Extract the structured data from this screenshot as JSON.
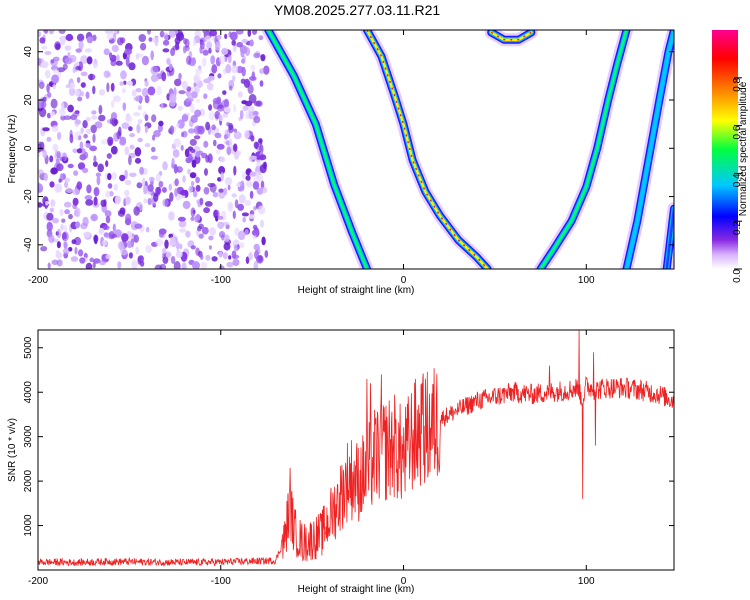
{
  "title": "YM08.2025.277.03.11.R21",
  "chart_data": [
    {
      "type": "heatmap",
      "xlabel": "Height of straight line (km)",
      "ylabel": "Frequency (Hz)",
      "xlim": [
        -200,
        148
      ],
      "ylim": [
        -50,
        49
      ],
      "x_ticks": [
        -200,
        -100,
        0,
        100
      ],
      "y_ticks": [
        -40,
        -20,
        0,
        20,
        40
      ],
      "noise_region_x": [
        -200,
        -75
      ],
      "colorbar": {
        "label": "Normalized spectral amplitude",
        "range": [
          0.0,
          1.0
        ],
        "ticks": [
          0.0,
          0.2,
          0.4,
          0.6,
          0.8
        ],
        "colors": [
          "#ffffff",
          "#8a2be2",
          "#0000ff",
          "#00c8ff",
          "#00ff40",
          "#ffff00",
          "#ff8000",
          "#ff0000",
          "#ff0090"
        ]
      },
      "traces": [
        {
          "name": "left branch",
          "points": [
            [
              -74,
              49
            ],
            [
              -60,
              30
            ],
            [
              -48,
              10
            ],
            [
              -38,
              -15
            ],
            [
              -28,
              -35
            ],
            [
              -20,
              -50
            ]
          ],
          "amplitude": 0.5
        },
        {
          "name": "main parabola left arm",
          "points": [
            [
              -20,
              49
            ],
            [
              -12,
              38
            ],
            [
              -5,
              22
            ],
            [
              0,
              10
            ],
            [
              5,
              -5
            ],
            [
              12,
              -18
            ],
            [
              20,
              -28
            ],
            [
              30,
              -38
            ],
            [
              40,
              -45
            ],
            [
              46,
              -50
            ]
          ],
          "amplitude": 0.8
        },
        {
          "name": "main parabola right arm",
          "points": [
            [
              75,
              -50
            ],
            [
              82,
              -42
            ],
            [
              92,
              -30
            ],
            [
              100,
              -16
            ],
            [
              106,
              0
            ],
            [
              112,
              20
            ],
            [
              117,
              35
            ],
            [
              122,
              49
            ]
          ],
          "amplitude": 0.45
        },
        {
          "name": "far right branch",
          "points": [
            [
              122,
              -50
            ],
            [
              128,
              -30
            ],
            [
              134,
              -5
            ],
            [
              140,
              20
            ],
            [
              145,
              40
            ],
            [
              148,
              49
            ]
          ],
          "amplitude": 0.25
        },
        {
          "name": "edge branch",
          "points": [
            [
              144,
              -50
            ],
            [
              148,
              -25
            ]
          ],
          "amplitude": 0.2
        },
        {
          "name": "top cap",
          "points": [
            [
              48,
              48
            ],
            [
              55,
              45
            ],
            [
              63,
              45
            ],
            [
              70,
              48
            ]
          ],
          "amplitude": 0.95
        }
      ]
    },
    {
      "type": "line",
      "xlabel": "Height of straight line (km)",
      "ylabel": "SNR (10 * v/v)",
      "xlim": [
        -200,
        148
      ],
      "ylim": [
        0,
        5400
      ],
      "x_ticks": [
        -200,
        -100,
        0,
        100
      ],
      "y_ticks": [
        1000,
        2000,
        3000,
        4000,
        5000
      ],
      "color": "#ee2222",
      "series": [
        {
          "name": "SNR",
          "x": [
            -200,
            -180,
            -160,
            -140,
            -120,
            -100,
            -90,
            -80,
            -70,
            -65,
            -62,
            -60,
            -55,
            -50,
            -45,
            -40,
            -35,
            -30,
            -25,
            -20,
            -15,
            -10,
            -5,
            0,
            5,
            10,
            15,
            20,
            25,
            30,
            40,
            50,
            60,
            70,
            80,
            90,
            95,
            98,
            100,
            105,
            110,
            120,
            130,
            140,
            148
          ],
          "y": [
            180,
            170,
            190,
            180,
            170,
            180,
            190,
            200,
            210,
            700,
            1500,
            900,
            600,
            700,
            800,
            1200,
            1600,
            2100,
            2000,
            2200,
            2600,
            2700,
            2800,
            2500,
            3000,
            3100,
            3200,
            3400,
            3500,
            3600,
            3800,
            3900,
            4000,
            3950,
            4000,
            4050,
            4100,
            3800,
            4150,
            4050,
            4100,
            4100,
            4050,
            3950,
            3800
          ],
          "spikes": [
            [
              -62,
              2300
            ],
            [
              -20,
              4300
            ],
            [
              -18,
              4200
            ],
            [
              -12,
              4400
            ],
            [
              10,
              4200
            ],
            [
              80,
              4600
            ],
            [
              96,
              5400
            ],
            [
              98,
              1600
            ],
            [
              104,
              4900
            ],
            [
              105,
              2800
            ]
          ]
        }
      ]
    }
  ]
}
